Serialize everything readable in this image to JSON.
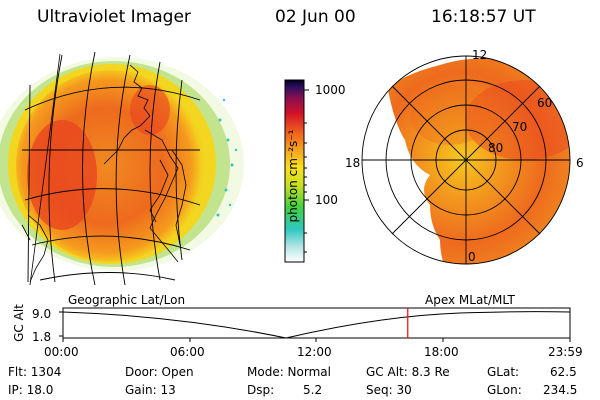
{
  "header": {
    "title": "Ultraviolet Imager",
    "date": "02 Jun 00",
    "time": "16:18:57 UT"
  },
  "colorbar": {
    "unit_label": "photon cm⁻²s⁻¹",
    "ticks": [
      {
        "label": "1000",
        "value": 1000
      },
      {
        "label": "100",
        "value": 100
      }
    ]
  },
  "polar_plot": {
    "mlt_labels": {
      "top": "12",
      "left": "18",
      "right": "6",
      "bottom": "0"
    },
    "mlat_labels": [
      "60",
      "70",
      "80"
    ]
  },
  "projection_labels": {
    "left": "Geographic Lat/Lon",
    "right": "Apex MLat/MLT"
  },
  "altitude_plot": {
    "axis_label": "GC Alt",
    "y_ticks": [
      "9.0",
      "1.8"
    ],
    "x_ticks": [
      "00:00",
      "06:00",
      "12:00",
      "18:00",
      "23:59"
    ],
    "current_time_marker_hours": 16.32
  },
  "status": {
    "flt": "Flt: 1304",
    "ip": "IP: 18.0",
    "door": "Door: Open",
    "gain": "Gain: 13",
    "mode": "Mode: Normal",
    "dsp": "Dsp:",
    "dsp_value": "5.2",
    "gc_alt": "GC Alt: 8.3 Re",
    "seq": "Seq: 30",
    "glat": "GLat:",
    "glat_value": "62.5",
    "glon": "GLon:",
    "glon_value": "234.5"
  },
  "colors": {
    "aurora_core": "#e8431f",
    "aurora_mid": "#f08a20",
    "aurora_outer": "#f7c81e",
    "aurora_edge": "#a8dc28",
    "aurora_fringe": "#34c8b0",
    "marker": "#ff0000"
  }
}
